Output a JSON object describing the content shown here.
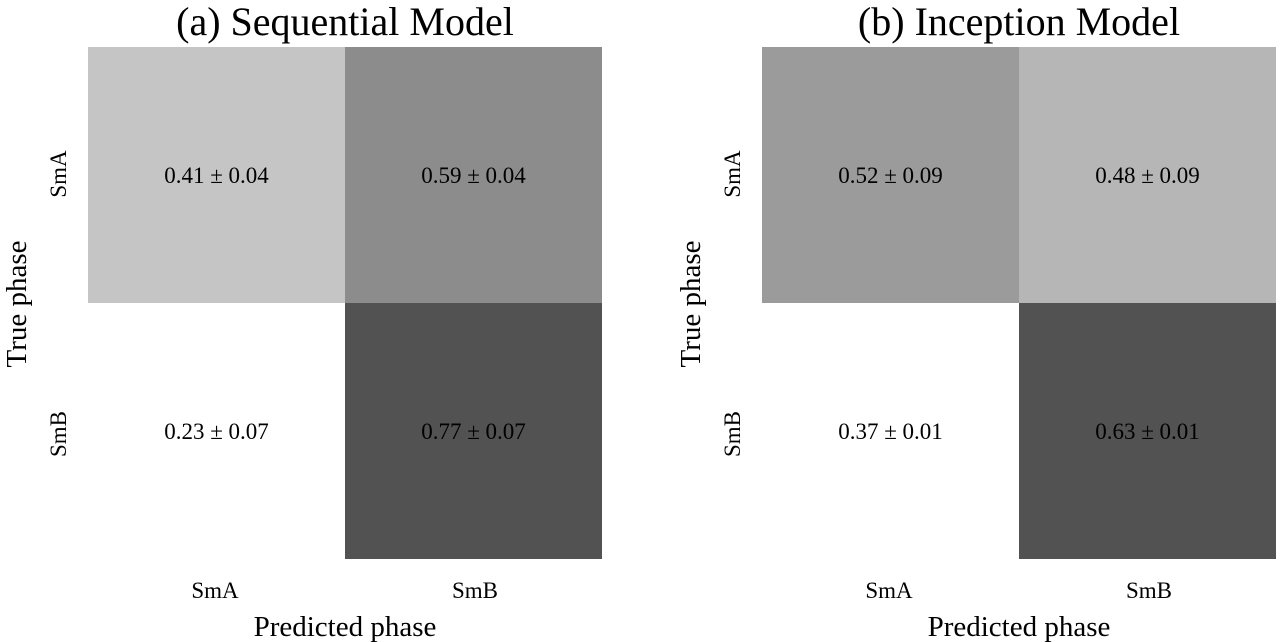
{
  "chart_data": [
    {
      "type": "heatmap",
      "title": "(a) Sequential Model",
      "xlabel": "Predicted phase",
      "ylabel": "True phase",
      "x_categories": [
        "SmA",
        "SmB"
      ],
      "y_categories": [
        "SmA",
        "SmB"
      ],
      "values": [
        [
          0.41,
          0.59
        ],
        [
          0.23,
          0.77
        ]
      ],
      "errors": [
        [
          0.04,
          0.04
        ],
        [
          0.07,
          0.07
        ]
      ],
      "cell_labels": [
        [
          "0.41 ± 0.04",
          "0.59 ± 0.04"
        ],
        [
          "0.23 ± 0.07",
          "0.77 ± 0.07"
        ]
      ],
      "colormap": "greys",
      "color_range": [
        0.23,
        0.77
      ],
      "colorbar": false
    },
    {
      "type": "heatmap",
      "title": "(b) Inception Model",
      "xlabel": "Predicted phase",
      "ylabel": "True phase",
      "x_categories": [
        "SmA",
        "SmB"
      ],
      "y_categories": [
        "SmA",
        "SmB"
      ],
      "values": [
        [
          0.52,
          0.48
        ],
        [
          0.37,
          0.63
        ]
      ],
      "errors": [
        [
          0.09,
          0.09
        ],
        [
          0.01,
          0.01
        ]
      ],
      "cell_labels": [
        [
          "0.52 ± 0.09",
          "0.48 ± 0.09"
        ],
        [
          "0.37 ± 0.01",
          "0.63 ± 0.01"
        ]
      ],
      "colormap": "greys",
      "color_range": [
        0.37,
        0.63
      ],
      "colorbar": false
    }
  ]
}
